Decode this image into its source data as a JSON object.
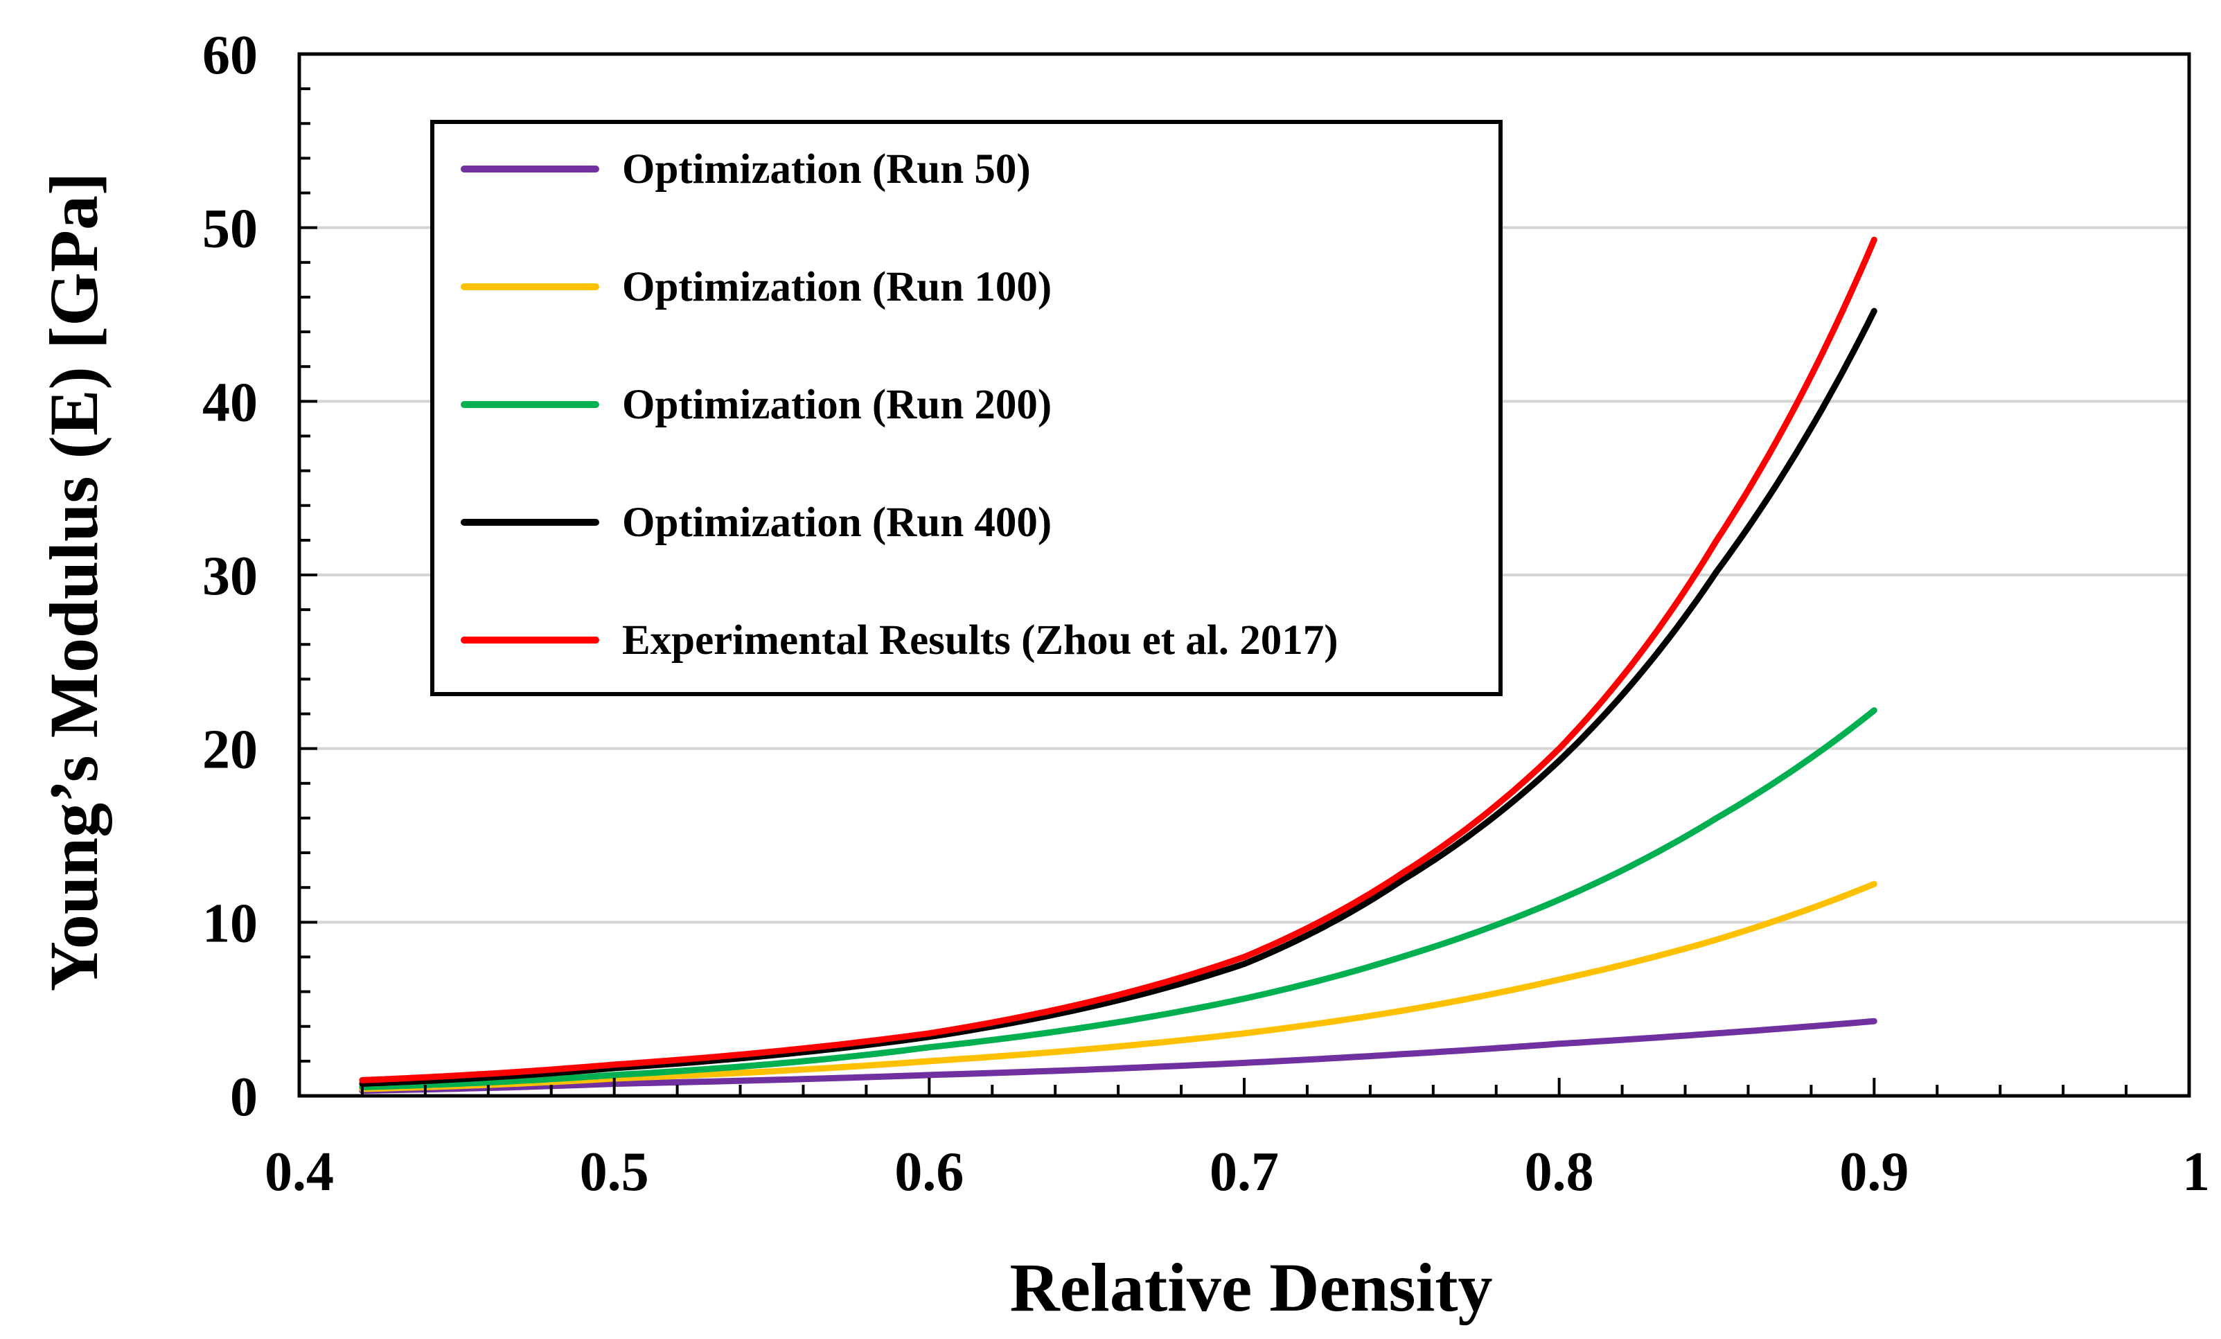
{
  "chart_data": {
    "type": "line",
    "xlabel": "Relative Density",
    "ylabel": "Young’s Modulus (E) [GPa]",
    "xlim": [
      0.4,
      1.0
    ],
    "ylim": [
      0,
      60
    ],
    "xticks": [
      "0.4",
      "0.5",
      "0.6",
      "0.7",
      "0.8",
      "0.9",
      "1"
    ],
    "yticks": [
      "0",
      "10",
      "20",
      "30",
      "40",
      "50",
      "60"
    ],
    "grid": "horizontal",
    "legend_position": "top-left",
    "series": [
      {
        "name": "Optimization (Run 50)",
        "color": "#7030a0",
        "x": [
          0.42,
          0.5,
          0.6,
          0.7,
          0.75,
          0.8,
          0.85,
          0.9
        ],
        "y": [
          0.3,
          0.7,
          1.2,
          1.9,
          2.4,
          3.0,
          3.6,
          4.3
        ]
      },
      {
        "name": "Optimization (Run 100)",
        "color": "#ffc000",
        "x": [
          0.42,
          0.5,
          0.6,
          0.7,
          0.75,
          0.8,
          0.85,
          0.9
        ],
        "y": [
          0.4,
          1.0,
          2.0,
          3.6,
          4.9,
          6.7,
          9.0,
          12.2
        ]
      },
      {
        "name": "Optimization (Run 200)",
        "color": "#00b050",
        "x": [
          0.42,
          0.5,
          0.6,
          0.7,
          0.75,
          0.8,
          0.85,
          0.9
        ],
        "y": [
          0.5,
          1.2,
          2.8,
          5.6,
          8.0,
          11.3,
          16.0,
          22.2
        ]
      },
      {
        "name": "Optimization (Run 400)",
        "color": "#000000",
        "x": [
          0.42,
          0.5,
          0.6,
          0.7,
          0.75,
          0.8,
          0.85,
          0.9
        ],
        "y": [
          0.7,
          1.6,
          3.4,
          7.6,
          12.4,
          19.3,
          30.2,
          45.2
        ]
      },
      {
        "name": "Experimental Results (Zhou et al. 2017)",
        "color": "#ff0000",
        "x": [
          0.42,
          0.5,
          0.6,
          0.7,
          0.75,
          0.8,
          0.85,
          0.9
        ],
        "y": [
          0.9,
          1.8,
          3.6,
          8.0,
          12.8,
          20.0,
          32.0,
          49.3
        ]
      }
    ]
  }
}
